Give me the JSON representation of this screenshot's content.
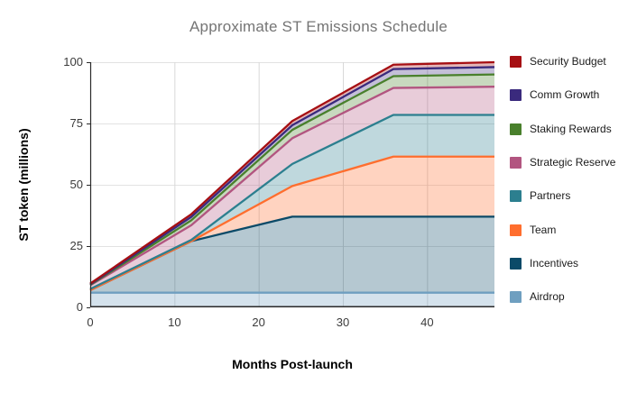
{
  "chart_data": {
    "type": "area",
    "stacked": true,
    "title": "Approximate ST Emissions Schedule",
    "xlabel": "Months Post-launch",
    "ylabel": "ST token (millions)",
    "xlim": [
      0,
      48
    ],
    "ylim": [
      0,
      100
    ],
    "x_ticks": [
      0,
      10,
      20,
      30,
      40
    ],
    "y_ticks": [
      0,
      25,
      50,
      75,
      100
    ],
    "grid": true,
    "legend_position": "right",
    "fill_opacity": 0.3,
    "x": [
      0,
      12,
      24,
      36,
      48
    ],
    "series": [
      {
        "name": "Airdrop",
        "color": "#6f9fc0",
        "values": [
          6,
          6,
          6,
          6,
          6
        ]
      },
      {
        "name": "Incentives",
        "color": "#0b4a68",
        "values": [
          1,
          21,
          31,
          31,
          31
        ]
      },
      {
        "name": "Team",
        "color": "#ff6e2e",
        "values": [
          0,
          0,
          12.5,
          24.5,
          24.5
        ]
      },
      {
        "name": "Partners",
        "color": "#2c7f8f",
        "values": [
          0.5,
          0.5,
          9,
          17,
          17
        ]
      },
      {
        "name": "Strategic Reserve",
        "color": "#b25580",
        "values": [
          1.5,
          6,
          10.5,
          11,
          11.5
        ]
      },
      {
        "name": "Staking Rewards",
        "color": "#49802c",
        "values": [
          0.2,
          2,
          3.4,
          4.8,
          5
        ]
      },
      {
        "name": "Comm Growth",
        "color": "#3a2a7d",
        "values": [
          0.2,
          1.4,
          1.9,
          2.9,
          3
        ]
      },
      {
        "name": "Security Budget",
        "color": "#a60f13",
        "values": [
          0.3,
          1.1,
          1.7,
          1.8,
          2
        ]
      }
    ],
    "legend_order": [
      "Security Budget",
      "Comm Growth",
      "Staking Rewards",
      "Strategic Reserve",
      "Partners",
      "Team",
      "Incentives",
      "Airdrop"
    ],
    "colors": {
      "h_gridline": "#e2e2e2",
      "v_gridline": "#d8d8d8",
      "axis": "#2a2a2a",
      "title_text": "#757575",
      "tick_text": "#3b3b3b"
    }
  }
}
